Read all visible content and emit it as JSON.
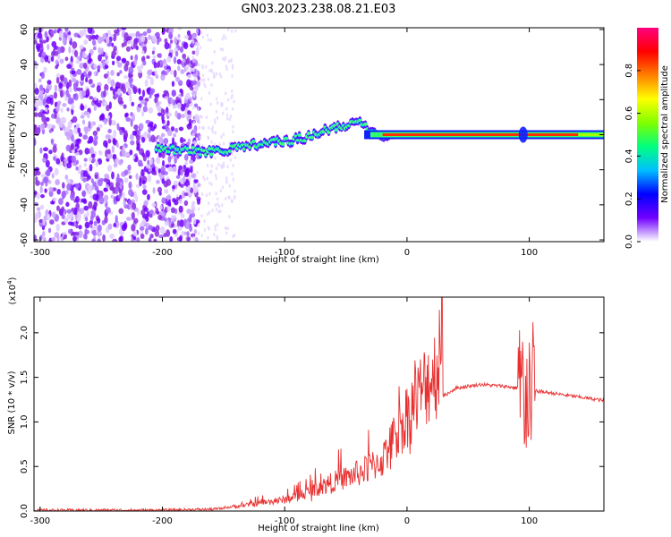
{
  "title": "GN03.2023.238.08.21.E03",
  "chart_data": [
    {
      "type": "heatmap",
      "xlabel": "Height of straight line (km)",
      "ylabel": "Frequency (Hz)",
      "xlim": [
        -305,
        161
      ],
      "ylim": [
        -61,
        61
      ],
      "xticks": [
        "-300",
        "-200",
        "-100",
        "0",
        "100"
      ],
      "xtick_values": [
        -300,
        -200,
        -100,
        0,
        100
      ],
      "yticks": [
        "60",
        "40",
        "20",
        "0",
        "-20",
        "-40",
        "-60"
      ],
      "ytick_values": [
        60,
        40,
        20,
        0,
        -20,
        -40,
        -60
      ],
      "colorbar": {
        "label": "Normalized spectral amplitude",
        "range": [
          0,
          1
        ],
        "ticks": [
          "0.0",
          "0.2",
          "0.4",
          "0.6",
          "0.8"
        ],
        "tick_values": [
          0.0,
          0.2,
          0.4,
          0.6,
          0.8
        ],
        "colors": [
          "#ffffff",
          "#7000ff",
          "#0000ff",
          "#00c0ff",
          "#00ff80",
          "#80ff00",
          "#ffff00",
          "#ff8000",
          "#ff0000",
          "#ff0080"
        ]
      },
      "ridge": {
        "x": [
          -200,
          -180,
          -160,
          -140,
          -120,
          -100,
          -80,
          -60,
          -40,
          -20,
          0,
          40,
          80,
          100,
          161
        ],
        "y": [
          -8,
          -9,
          -10,
          -8,
          -5,
          -4,
          -1,
          4,
          7,
          -1,
          0,
          0,
          0,
          0,
          0
        ]
      }
    },
    {
      "type": "line",
      "xlabel": "Height of straight line (km)",
      "ylabel": "SNR (10 * v/v)",
      "multiplier": "(x10",
      "multiplier_exp": "4",
      "multiplier_close": ")",
      "xlim": [
        -305,
        161
      ],
      "ylim": [
        0,
        2.4
      ],
      "xticks": [
        "-300",
        "-200",
        "-100",
        "0",
        "100"
      ],
      "xtick_values": [
        -300,
        -200,
        -100,
        0,
        100
      ],
      "yticks": [
        "0.0",
        "0.5",
        "1.0",
        "1.5",
        "2.0"
      ],
      "ytick_values": [
        0.0,
        0.5,
        1.0,
        1.5,
        2.0
      ],
      "color": "#e83030",
      "envelope": {
        "x": [
          -305,
          -200,
          -160,
          -140,
          -120,
          -100,
          -80,
          -60,
          -40,
          -20,
          0,
          20,
          40,
          60,
          80,
          90,
          100,
          110,
          130,
          161
        ],
        "y": [
          0.01,
          0.01,
          0.02,
          0.04,
          0.07,
          0.1,
          0.17,
          0.26,
          0.33,
          0.45,
          0.85,
          1.2,
          1.38,
          1.42,
          1.4,
          1.38,
          1.35,
          1.34,
          1.3,
          1.24
        ]
      }
    }
  ]
}
